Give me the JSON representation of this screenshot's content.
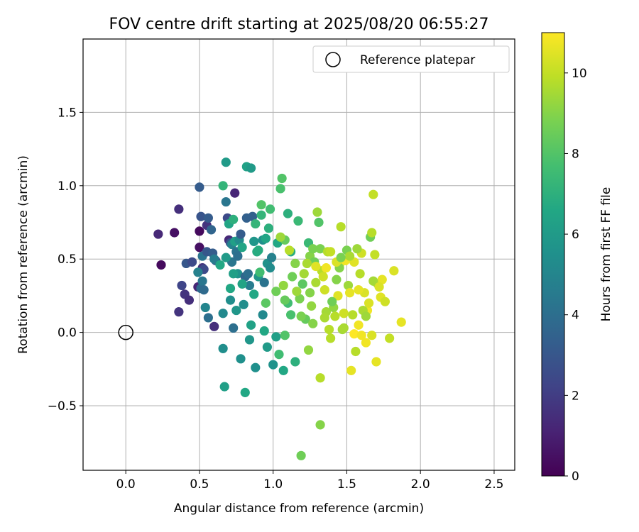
{
  "chart_data": {
    "type": "scatter",
    "title": "FOV centre drift starting at 2025/08/20 06:55:27",
    "xlabel": "Angular distance from reference (arcmin)",
    "ylabel": "Rotation from reference (arcmin)",
    "xlim": [
      -0.29,
      2.64
    ],
    "ylim": [
      -0.94,
      2.0
    ],
    "xticks": [
      0.0,
      0.5,
      1.0,
      1.5,
      2.0,
      2.5
    ],
    "xtick_labels": [
      "0.0",
      "0.5",
      "1.0",
      "1.5",
      "2.0",
      "2.5"
    ],
    "yticks": [
      -0.5,
      0.0,
      0.5,
      1.0,
      1.5
    ],
    "ytick_labels": [
      "−0.5",
      "0.0",
      "0.5",
      "1.0",
      "1.5"
    ],
    "grid": true,
    "legend": {
      "position": "top-right",
      "entries": [
        {
          "label": "Reference platepar",
          "marker": "open-circle"
        }
      ]
    },
    "reference_point": {
      "x": 0.0,
      "y": 0.0
    },
    "colorbar": {
      "label": "Hours from first FF file",
      "colormap": "viridis",
      "range": [
        0,
        11
      ],
      "ticks": [
        0,
        2,
        4,
        6,
        8,
        10
      ],
      "tick_labels": [
        "0",
        "2",
        "4",
        "6",
        "8",
        "10"
      ]
    },
    "points": [
      [
        0.24,
        0.46,
        0.3
      ],
      [
        0.22,
        0.67,
        1.3
      ],
      [
        0.33,
        0.68,
        0.5
      ],
      [
        0.36,
        0.84,
        1.5
      ],
      [
        0.36,
        0.14,
        1.7
      ],
      [
        0.38,
        0.32,
        2.3
      ],
      [
        0.4,
        0.26,
        1.7
      ],
      [
        0.41,
        0.47,
        3.0
      ],
      [
        0.43,
        0.22,
        1.5
      ],
      [
        0.45,
        0.48,
        2.5
      ],
      [
        0.5,
        0.99,
        3.2
      ],
      [
        0.49,
        0.31,
        1.2
      ],
      [
        0.5,
        0.69,
        0.3
      ],
      [
        0.5,
        0.58,
        0.5
      ],
      [
        0.51,
        0.79,
        2.9
      ],
      [
        0.52,
        0.52,
        4.2
      ],
      [
        0.52,
        0.44,
        1.7
      ],
      [
        0.53,
        0.43,
        2.5
      ],
      [
        0.55,
        0.73,
        1.7
      ],
      [
        0.55,
        0.55,
        3.0
      ],
      [
        0.56,
        0.78,
        3.2
      ],
      [
        0.56,
        0.1,
        4.0
      ],
      [
        0.58,
        0.7,
        3.6
      ],
      [
        0.6,
        0.04,
        1.5
      ],
      [
        0.59,
        0.54,
        3.2
      ],
      [
        0.61,
        0.49,
        3.2
      ],
      [
        0.49,
        0.41,
        4.8
      ],
      [
        0.51,
        0.3,
        3.8
      ],
      [
        0.52,
        0.35,
        4.3
      ],
      [
        0.53,
        0.29,
        3.8
      ],
      [
        0.54,
        0.17,
        5.0
      ],
      [
        0.66,
        0.13,
        5.2
      ],
      [
        0.68,
        1.16,
        6.0
      ],
      [
        0.66,
        1.0,
        7.2
      ],
      [
        0.68,
        0.89,
        4.3
      ],
      [
        0.69,
        0.78,
        2.5
      ],
      [
        0.7,
        0.74,
        6.5
      ],
      [
        0.7,
        0.63,
        1.3
      ],
      [
        0.71,
        0.61,
        2.8
      ],
      [
        0.71,
        0.3,
        6.6
      ],
      [
        0.72,
        0.48,
        4.3
      ],
      [
        0.72,
        0.6,
        5.0
      ],
      [
        0.73,
        0.77,
        7.0
      ],
      [
        0.74,
        0.95,
        1.2
      ],
      [
        0.74,
        0.62,
        6.2
      ],
      [
        0.75,
        0.55,
        4.2
      ],
      [
        0.76,
        0.52,
        4.0
      ],
      [
        0.76,
        0.4,
        5.6
      ],
      [
        0.77,
        0.63,
        5.3
      ],
      [
        0.78,
        0.67,
        3.2
      ],
      [
        0.79,
        0.58,
        6.5
      ],
      [
        0.8,
        0.19,
        5.4
      ],
      [
        0.81,
        0.38,
        3.7
      ],
      [
        0.82,
        0.78,
        3.4
      ],
      [
        0.83,
        0.4,
        4.0
      ],
      [
        0.84,
        0.32,
        4.6
      ],
      [
        0.85,
        0.05,
        6.3
      ],
      [
        0.86,
        0.79,
        3.4
      ],
      [
        0.87,
        0.62,
        5.8
      ],
      [
        0.88,
        0.74,
        7.2
      ],
      [
        0.89,
        0.55,
        6.8
      ],
      [
        0.9,
        0.38,
        5.8
      ],
      [
        0.91,
        0.41,
        7.6
      ],
      [
        0.92,
        0.8,
        7.2
      ],
      [
        0.93,
        0.63,
        5.5
      ],
      [
        0.94,
        0.34,
        4.2
      ],
      [
        0.95,
        0.64,
        6.5
      ],
      [
        0.96,
        0.47,
        5.6
      ],
      [
        0.98,
        0.44,
        5.3
      ],
      [
        0.99,
        0.51,
        4.8
      ],
      [
        0.66,
        -0.11,
        5.4
      ],
      [
        0.67,
        -0.37,
        6.2
      ],
      [
        0.71,
        0.22,
        5.4
      ],
      [
        0.73,
        0.03,
        4.0
      ],
      [
        0.75,
        0.15,
        5.8
      ],
      [
        0.78,
        -0.18,
        5.5
      ],
      [
        0.81,
        -0.41,
        6.6
      ],
      [
        0.84,
        -0.05,
        5.8
      ],
      [
        0.88,
        -0.24,
        5.5
      ],
      [
        0.93,
        0.12,
        5.2
      ],
      [
        0.94,
        0.01,
        6.6
      ],
      [
        0.96,
        -0.1,
        6.0
      ],
      [
        1.0,
        -0.22,
        5.6
      ],
      [
        1.02,
        -0.03,
        6.2
      ],
      [
        1.04,
        -0.15,
        7.6
      ],
      [
        1.07,
        -0.26,
        6.6
      ],
      [
        1.08,
        -0.02,
        8.0
      ],
      [
        1.1,
        0.2,
        7.6
      ],
      [
        1.12,
        0.12,
        7.8
      ],
      [
        1.15,
        -0.2,
        7.0
      ],
      [
        0.82,
        1.13,
        6.3
      ],
      [
        0.85,
        1.12,
        6.0
      ],
      [
        0.92,
        0.87,
        8.0
      ],
      [
        0.98,
        0.84,
        7.6
      ],
      [
        1.03,
        0.61,
        6.6
      ],
      [
        1.05,
        0.98,
        7.8
      ],
      [
        1.06,
        1.05,
        8.0
      ],
      [
        1.08,
        0.63,
        8.4
      ],
      [
        1.1,
        0.81,
        7.0
      ],
      [
        1.12,
        0.55,
        6.8
      ],
      [
        1.13,
        0.38,
        8.6
      ],
      [
        1.15,
        0.47,
        9.0
      ],
      [
        1.17,
        0.76,
        7.4
      ],
      [
        1.18,
        0.23,
        8.8
      ],
      [
        1.2,
        0.33,
        8.2
      ],
      [
        1.21,
        0.4,
        9.5
      ],
      [
        1.22,
        0.09,
        8.4
      ],
      [
        1.24,
        0.61,
        7.4
      ],
      [
        1.25,
        0.52,
        9.0
      ],
      [
        1.26,
        0.18,
        9.2
      ],
      [
        1.27,
        0.06,
        9.0
      ],
      [
        1.28,
        0.48,
        8.6
      ],
      [
        1.3,
        0.82,
        9.4
      ],
      [
        1.31,
        0.75,
        8.0
      ],
      [
        1.32,
        0.57,
        8.8
      ],
      [
        1.33,
        0.42,
        9.8
      ],
      [
        1.34,
        0.38,
        10.2
      ],
      [
        1.35,
        0.29,
        10.2
      ],
      [
        1.36,
        0.14,
        9.5
      ],
      [
        1.37,
        0.55,
        9.8
      ],
      [
        1.38,
        0.02,
        9.8
      ],
      [
        1.39,
        -0.04,
        9.8
      ],
      [
        1.41,
        0.17,
        9.2
      ],
      [
        1.43,
        0.36,
        9.0
      ],
      [
        1.44,
        0.25,
        10.5
      ],
      [
        1.45,
        0.46,
        10.2
      ],
      [
        1.46,
        0.72,
        9.8
      ],
      [
        1.47,
        0.02,
        9.5
      ],
      [
        1.48,
        0.13,
        10.2
      ],
      [
        1.49,
        0.49,
        10.8
      ],
      [
        1.5,
        0.56,
        8.8
      ],
      [
        1.51,
        0.32,
        9.4
      ],
      [
        1.52,
        0.27,
        10.6
      ],
      [
        1.53,
        -0.26,
        10.6
      ],
      [
        1.55,
        0.48,
        10.5
      ],
      [
        1.56,
        -0.13,
        9.8
      ],
      [
        1.58,
        0.05,
        10.8
      ],
      [
        1.59,
        0.4,
        9.8
      ],
      [
        1.6,
        0.54,
        10.2
      ],
      [
        1.62,
        0.27,
        10.4
      ],
      [
        1.63,
        -0.07,
        10.8
      ],
      [
        1.64,
        0.15,
        10.8
      ],
      [
        1.66,
        0.65,
        8.6
      ],
      [
        1.67,
        0.68,
        9.8
      ],
      [
        1.68,
        0.94,
        10.0
      ],
      [
        1.69,
        0.53,
        10.0
      ],
      [
        1.7,
        -0.2,
        10.6
      ],
      [
        1.71,
        0.33,
        9.5
      ],
      [
        1.73,
        0.24,
        10.5
      ],
      [
        1.74,
        0.36,
        10.6
      ],
      [
        1.76,
        0.21,
        10.2
      ],
      [
        1.79,
        -0.04,
        10.0
      ],
      [
        1.82,
        0.42,
        10.4
      ],
      [
        1.87,
        0.07,
        10.6
      ],
      [
        1.05,
        0.65,
        9.4
      ],
      [
        1.07,
        0.32,
        9.2
      ],
      [
        1.11,
        0.56,
        9.8
      ],
      [
        1.16,
        0.28,
        9.4
      ],
      [
        1.19,
        0.11,
        8.8
      ],
      [
        1.23,
        0.47,
        9.6
      ],
      [
        1.29,
        0.34,
        9.6
      ],
      [
        1.32,
        -0.31,
        9.8
      ],
      [
        1.32,
        -0.63,
        9.0
      ],
      [
        1.19,
        -0.84,
        8.6
      ],
      [
        1.39,
        0.55,
        10.0
      ],
      [
        1.42,
        0.11,
        9.8
      ],
      [
        1.45,
        0.44,
        9.0
      ],
      [
        1.54,
        0.12,
        9.8
      ],
      [
        1.57,
        0.57,
        9.4
      ],
      [
        1.61,
        0.15,
        9.6
      ],
      [
        1.65,
        0.2,
        10.4
      ],
      [
        1.68,
        0.35,
        9.5
      ],
      [
        1.72,
        0.31,
        10.4
      ],
      [
        1.35,
        0.1,
        9.6
      ],
      [
        1.4,
        0.21,
        8.6
      ],
      [
        1.27,
        0.57,
        8.8
      ],
      [
        1.24,
        -0.12,
        9.2
      ],
      [
        1.29,
        0.45,
        10.5
      ],
      [
        1.55,
        -0.01,
        11.0
      ],
      [
        1.6,
        -0.02,
        10.8
      ],
      [
        1.48,
        0.03,
        9.6
      ],
      [
        1.43,
        0.48,
        10.4
      ],
      [
        1.52,
        0.52,
        9.6
      ],
      [
        1.63,
        0.11,
        9.4
      ],
      [
        1.67,
        -0.02,
        10.4
      ],
      [
        1.58,
        0.29,
        10.6
      ],
      [
        1.36,
        0.44,
        10.8
      ],
      [
        1.46,
        0.51,
        8.8
      ],
      [
        1.25,
        0.27,
        9.0
      ],
      [
        1.08,
        0.22,
        8.4
      ],
      [
        0.9,
        0.56,
        6.8
      ],
      [
        0.87,
        0.26,
        6.6
      ],
      [
        0.95,
        0.2,
        8.2
      ],
      [
        0.97,
        0.71,
        7.0
      ],
      [
        1.02,
        0.28,
        8.6
      ],
      [
        0.6,
        0.5,
        4.6
      ],
      [
        0.64,
        0.46,
        6.6
      ],
      [
        0.68,
        0.51,
        6.0
      ],
      [
        0.73,
        0.4,
        6.2
      ],
      [
        0.79,
        0.33,
        6.4
      ]
    ]
  }
}
